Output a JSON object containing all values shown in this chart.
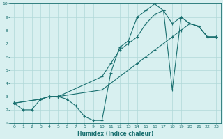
{
  "xlabel": "Humidex (Indice chaleur)",
  "bg_color": "#d8f0f0",
  "grid_color": "#b0d8d8",
  "line_color": "#1a7070",
  "xlim": [
    -0.5,
    23.5
  ],
  "ylim": [
    1,
    10
  ],
  "xticks": [
    0,
    1,
    2,
    3,
    4,
    5,
    6,
    7,
    8,
    9,
    10,
    11,
    12,
    13,
    14,
    15,
    16,
    17,
    18,
    19,
    20,
    21,
    22,
    23
  ],
  "yticks": [
    1,
    2,
    3,
    4,
    5,
    6,
    7,
    8,
    9,
    10
  ],
  "line1_x": [
    0,
    1,
    2,
    3,
    4,
    5,
    6,
    7,
    8,
    9,
    10,
    11,
    12,
    13,
    14,
    15,
    16,
    17,
    18,
    19,
    20,
    21,
    22,
    23
  ],
  "line1_y": [
    2.5,
    2.0,
    2.0,
    2.8,
    3.0,
    3.0,
    2.8,
    2.3,
    1.5,
    1.2,
    1.2,
    4.8,
    6.7,
    7.2,
    9.0,
    9.5,
    10.0,
    9.5,
    3.5,
    9.0,
    8.5,
    8.3,
    7.5,
    7.5
  ],
  "line2_x": [
    0,
    3,
    4,
    5,
    10,
    14,
    15,
    16,
    17,
    18,
    19,
    20,
    21,
    22,
    23
  ],
  "line2_y": [
    2.5,
    2.8,
    3.0,
    3.0,
    3.5,
    5.5,
    6.0,
    6.5,
    7.0,
    7.5,
    8.0,
    8.5,
    8.3,
    7.5,
    7.5
  ],
  "line3_x": [
    0,
    3,
    4,
    5,
    10,
    11,
    12,
    13,
    14,
    15,
    16,
    17,
    18,
    19,
    20,
    21,
    22,
    23
  ],
  "line3_y": [
    2.5,
    2.8,
    3.0,
    3.0,
    4.5,
    5.5,
    6.5,
    7.0,
    7.5,
    8.5,
    9.2,
    9.5,
    8.5,
    9.0,
    8.5,
    8.3,
    7.5,
    7.5
  ]
}
